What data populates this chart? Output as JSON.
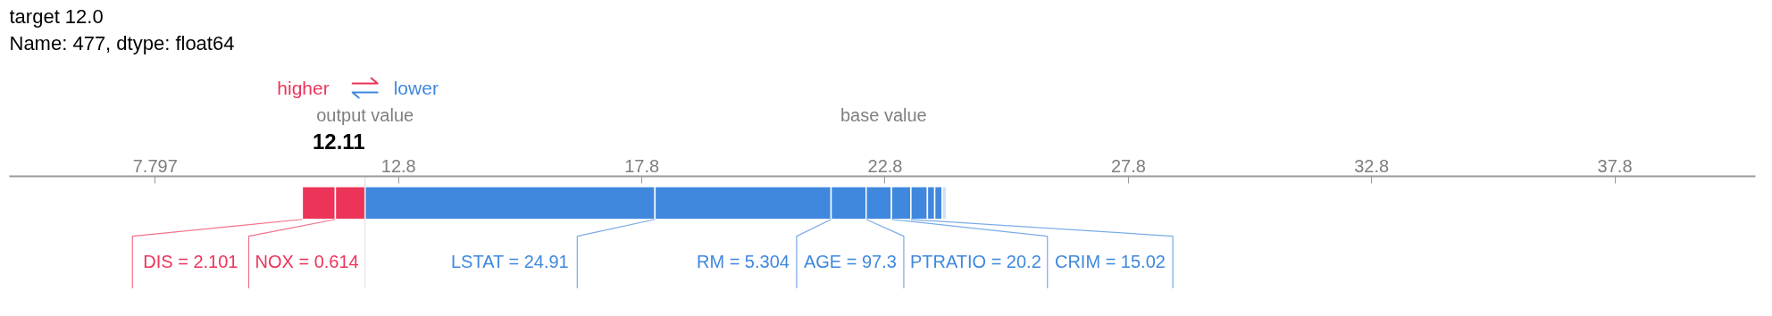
{
  "chart_data": {
    "type": "bar",
    "orientation": "horizontal",
    "title": "target    12.0",
    "subtitle": "Name: 477, dtype: float64",
    "categories": [
      null
    ],
    "xlim": [
      4.8,
      40.69
    ],
    "xticks": [
      7.797,
      12.8,
      17.8,
      22.8,
      27.8,
      32.8,
      37.8
    ],
    "grid": false,
    "tick_labels": "x",
    "series": [
      {
        "name": "DIS = 2.101",
        "color": "#ec3458",
        "values": [
          0.68
        ],
        "base": [
          10.82
        ]
      },
      {
        "name": "NOX = 0.614",
        "color": "#ec3458",
        "values": [
          0.61
        ],
        "base": [
          11.5
        ]
      },
      {
        "name": "LSTAT = 24.91",
        "color": "#3f88de",
        "values": [
          -5.96
        ],
        "base": [
          18.07
        ]
      },
      {
        "name": "RM = 5.304",
        "color": "#3f88de",
        "values": [
          -3.62
        ],
        "base": [
          21.69
        ]
      },
      {
        "name": "AGE = 97.3",
        "color": "#3f88de",
        "values": [
          -0.72
        ],
        "base": [
          22.41
        ]
      },
      {
        "name": "PTRATIO = 20.2",
        "color": "#3f88de",
        "values": [
          -0.52
        ],
        "base": [
          22.93
        ]
      },
      {
        "name": "CRIM = 15.02",
        "color": "#3f88de",
        "values": [
          -0.4
        ],
        "base": [
          23.33
        ]
      },
      {
        "color": "#3f88de",
        "values": [
          -0.34
        ],
        "base": [
          23.67
        ]
      },
      {
        "color": "#3f88de",
        "values": [
          -0.15
        ],
        "base": [
          23.82
        ]
      },
      {
        "color": "#3f88de",
        "values": [
          -0.15
        ],
        "base": [
          23.97
        ]
      },
      {
        "color": "#cfe1f6",
        "values": [
          -0.09
        ],
        "base": [
          24.06
        ]
      }
    ],
    "annotations": [
      "higher",
      "lower",
      "output value",
      "12.11",
      "base value"
    ]
  }
}
